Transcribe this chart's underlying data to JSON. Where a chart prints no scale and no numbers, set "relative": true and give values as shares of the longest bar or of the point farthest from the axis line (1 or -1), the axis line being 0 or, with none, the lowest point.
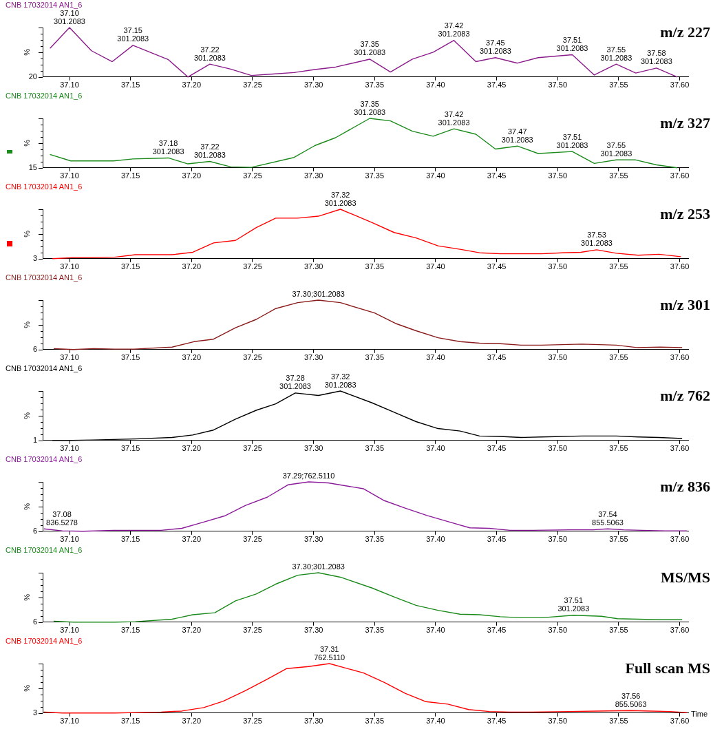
{
  "chart_data": [
    {
      "type": "line",
      "title": "CNB 17032014 AN1_6",
      "subtitle": "m/z 227",
      "ylabel": "%",
      "marker": "none",
      "line_style": "solid",
      "relative": true,
      "x": [
        37.084,
        37.1,
        37.118,
        37.135,
        37.152,
        37.181,
        37.197,
        37.215,
        37.232,
        37.249,
        37.267,
        37.284,
        37.301,
        37.318,
        37.346,
        37.363,
        37.381,
        37.398,
        37.415,
        37.433,
        37.449,
        37.467,
        37.484,
        37.512,
        37.53,
        37.548,
        37.564,
        37.581,
        37.598
      ],
      "series": [
        {
          "color": "#8b1a8b",
          "values": [
            0.58,
            1,
            0.53,
            0.31,
            0.64,
            0.35,
            0,
            0.26,
            0.16,
            0.03,
            0.06,
            0.09,
            0.15,
            0.2,
            0.36,
            0.1,
            0.36,
            0.5,
            0.74,
            0.31,
            0.39,
            0.28,
            0.39,
            0.45,
            0.04,
            0.26,
            0.08,
            0.18,
            0
          ]
        }
      ],
      "xlim": [
        37.078,
        37.607
      ],
      "xticks": [
        {
          "value": 37.1,
          "label": "37.10"
        },
        {
          "value": 37.15,
          "label": "37.15"
        },
        {
          "value": 37.2,
          "label": "37.20"
        },
        {
          "value": 37.25,
          "label": "37.25"
        },
        {
          "value": 37.3,
          "label": "37.30"
        },
        {
          "value": 37.35,
          "label": "37.35"
        },
        {
          "value": 37.4,
          "label": "37.40"
        },
        {
          "value": 37.45,
          "label": "37.45"
        },
        {
          "value": 37.5,
          "label": "37.50"
        },
        {
          "value": 37.55,
          "label": "37.55"
        },
        {
          "value": 37.6,
          "label": "37.60"
        }
      ],
      "annotations": [
        "20",
        {
          "text": "37.10\n301.2083",
          "x": 37.1,
          "y": 1
        },
        {
          "text": "37.15\n301.2083",
          "x": 37.152,
          "y": 0.64
        },
        {
          "text": "37.22\n301.2083",
          "x": 37.215,
          "y": 0.26
        },
        {
          "text": "37.35\n301.2083",
          "x": 37.346,
          "y": 0.36
        },
        {
          "text": "37.42\n301.2083",
          "x": 37.415,
          "y": 0.74
        },
        {
          "text": "37.45\n301.2083",
          "x": 37.449,
          "y": 0.39
        },
        {
          "text": "37.51\n301.2083",
          "x": 37.512,
          "y": 0.45
        },
        {
          "text": "37.55\n301.2083",
          "x": 37.548,
          "y": 0.26
        },
        {
          "text": "37.58\n301.2083",
          "x": 37.581,
          "y": 0.18
        }
      ]
    },
    {
      "type": "line",
      "title": "CNB 17032014 AN1_6",
      "subtitle": "m/z 327",
      "ylabel": "%",
      "marker": "none",
      "line_style": "solid",
      "relative": true,
      "x": [
        37.084,
        37.101,
        37.118,
        37.136,
        37.152,
        37.181,
        37.197,
        37.215,
        37.232,
        37.249,
        37.284,
        37.301,
        37.318,
        37.346,
        37.363,
        37.381,
        37.398,
        37.415,
        37.433,
        37.449,
        37.467,
        37.484,
        37.512,
        37.53,
        37.548,
        37.564,
        37.581,
        37.598
      ],
      "series": [
        {
          "color": "#1a8a1a",
          "values": [
            0.27,
            0.14,
            0.14,
            0.14,
            0.18,
            0.2,
            0.08,
            0.13,
            0.02,
            0.01,
            0.21,
            0.45,
            0.61,
            1,
            0.95,
            0.74,
            0.64,
            0.79,
            0.68,
            0.38,
            0.44,
            0.29,
            0.33,
            0.09,
            0.16,
            0.16,
            0.06,
            0
          ]
        }
      ],
      "xlim": [
        37.078,
        37.607
      ],
      "xticks": [
        {
          "value": 37.1,
          "label": "37.10"
        },
        {
          "value": 37.15,
          "label": "37.15"
        },
        {
          "value": 37.2,
          "label": "37.20"
        },
        {
          "value": 37.25,
          "label": "37.25"
        },
        {
          "value": 37.3,
          "label": "37.30"
        },
        {
          "value": 37.35,
          "label": "37.35"
        },
        {
          "value": 37.4,
          "label": "37.40"
        },
        {
          "value": 37.45,
          "label": "37.45"
        },
        {
          "value": 37.5,
          "label": "37.50"
        },
        {
          "value": 37.55,
          "label": "37.55"
        },
        {
          "value": 37.6,
          "label": "37.60"
        }
      ],
      "annotations": [
        "15",
        {
          "text": "37.18\n301.2083",
          "x": 37.181,
          "y": 0.2
        },
        {
          "text": "37.22\n301.2083",
          "x": 37.215,
          "y": 0.13
        },
        {
          "text": "37.35\n301.2083",
          "x": 37.346,
          "y": 1
        },
        {
          "text": "37.42\n301.2083",
          "x": 37.415,
          "y": 0.79
        },
        {
          "text": "37.47\n301.2083",
          "x": 37.467,
          "y": 0.44
        },
        {
          "text": "37.51\n301.2083",
          "x": 37.512,
          "y": 0.33
        },
        {
          "text": "37.55\n301.2083",
          "x": 37.548,
          "y": 0.16
        }
      ]
    },
    {
      "type": "line",
      "title": "CNB 17032014 AN1_6",
      "subtitle": "m/z 253",
      "ylabel": "%",
      "marker": "none",
      "line_style": "solid",
      "relative": true,
      "x": [
        37.086,
        37.102,
        37.119,
        37.137,
        37.154,
        37.184,
        37.201,
        37.218,
        37.236,
        37.253,
        37.269,
        37.287,
        37.304,
        37.322,
        37.348,
        37.366,
        37.384,
        37.402,
        37.42,
        37.436,
        37.453,
        37.487,
        37.504,
        37.519,
        37.532,
        37.548,
        37.566,
        37.583,
        37.601
      ],
      "series": [
        {
          "color": "#ff0000",
          "values": [
            0,
            0.02,
            0.02,
            0.03,
            0.08,
            0.08,
            0.13,
            0.32,
            0.37,
            0.63,
            0.82,
            0.82,
            0.86,
            1,
            0.73,
            0.53,
            0.42,
            0.26,
            0.19,
            0.12,
            0.1,
            0.1,
            0.12,
            0.13,
            0.18,
            0.11,
            0.07,
            0.09,
            0.04
          ]
        }
      ],
      "xlim": [
        37.078,
        37.607
      ],
      "xticks": [
        {
          "value": 37.1,
          "label": "37.10"
        },
        {
          "value": 37.15,
          "label": "37.15"
        },
        {
          "value": 37.2,
          "label": "37.20"
        },
        {
          "value": 37.25,
          "label": "37.25"
        },
        {
          "value": 37.3,
          "label": "37.30"
        },
        {
          "value": 37.35,
          "label": "37.35"
        },
        {
          "value": 37.4,
          "label": "37.40"
        },
        {
          "value": 37.45,
          "label": "37.45"
        },
        {
          "value": 37.5,
          "label": "37.50"
        },
        {
          "value": 37.55,
          "label": "37.55"
        },
        {
          "value": 37.6,
          "label": "37.60"
        }
      ],
      "annotations": [
        "3",
        {
          "text": "37.32\n301.2083",
          "x": 37.322,
          "y": 1
        },
        {
          "text": "37.53\n301.2083",
          "x": 37.532,
          "y": 0.18
        }
      ]
    },
    {
      "type": "line",
      "title": "CNB 17032014 AN1_6",
      "subtitle": "m/z 301",
      "ylabel": "%",
      "marker": "none",
      "line_style": "solid",
      "relative": true,
      "x": [
        37.087,
        37.103,
        37.12,
        37.137,
        37.153,
        37.184,
        37.202,
        37.218,
        37.236,
        37.253,
        37.269,
        37.287,
        37.304,
        37.322,
        37.35,
        37.367,
        37.384,
        37.402,
        37.42,
        37.436,
        37.453,
        37.47,
        37.487,
        37.52,
        37.548,
        37.565,
        37.584,
        37.602
      ],
      "series": [
        {
          "color": "#8b1a1a",
          "values": [
            0.02,
            0,
            0.02,
            0.01,
            0.01,
            0.05,
            0.16,
            0.21,
            0.44,
            0.61,
            0.83,
            0.95,
            1,
            0.95,
            0.74,
            0.53,
            0.38,
            0.24,
            0.16,
            0.13,
            0.12,
            0.09,
            0.09,
            0.11,
            0.09,
            0.04,
            0.05,
            0.04
          ]
        }
      ],
      "xlim": [
        37.078,
        37.607
      ],
      "xticks": [
        {
          "value": 37.1,
          "label": "37.10"
        },
        {
          "value": 37.15,
          "label": "37.15"
        },
        {
          "value": 37.2,
          "label": "37.20"
        },
        {
          "value": 37.25,
          "label": "37.25"
        },
        {
          "value": 37.3,
          "label": "37.30"
        },
        {
          "value": 37.35,
          "label": "37.35"
        },
        {
          "value": 37.4,
          "label": "37.40"
        },
        {
          "value": 37.45,
          "label": "37.45"
        },
        {
          "value": 37.5,
          "label": "37.50"
        },
        {
          "value": 37.55,
          "label": "37.55"
        },
        {
          "value": 37.6,
          "label": "37.60"
        }
      ],
      "annotations": [
        "6",
        {
          "text": "37.30;301.2083",
          "x": 37.304,
          "y": 1
        }
      ]
    },
    {
      "type": "line",
      "title": "CNB 17032014 AN1_6",
      "subtitle": "m/z 762",
      "ylabel": "%",
      "marker": "none",
      "line_style": "solid",
      "relative": true,
      "x": [
        37.086,
        37.102,
        37.119,
        37.136,
        37.154,
        37.184,
        37.201,
        37.218,
        37.236,
        37.253,
        37.269,
        37.285,
        37.304,
        37.322,
        37.348,
        37.367,
        37.384,
        37.402,
        37.42,
        37.436,
        37.453,
        37.47,
        37.487,
        37.52,
        37.535,
        37.548,
        37.566,
        37.583,
        37.602
      ],
      "series": [
        {
          "color": "#000000",
          "values": [
            0,
            0,
            0.01,
            0.02,
            0.03,
            0.06,
            0.11,
            0.21,
            0.43,
            0.61,
            0.74,
            0.96,
            0.91,
            1,
            0.76,
            0.56,
            0.38,
            0.24,
            0.19,
            0.09,
            0.08,
            0.06,
            0.07,
            0.09,
            0.09,
            0.09,
            0.07,
            0.06,
            0.04
          ]
        }
      ],
      "xlim": [
        37.078,
        37.607
      ],
      "xticks": [
        {
          "value": 37.1,
          "label": "37.10"
        },
        {
          "value": 37.15,
          "label": "37.15"
        },
        {
          "value": 37.2,
          "label": "37.20"
        },
        {
          "value": 37.25,
          "label": "37.25"
        },
        {
          "value": 37.3,
          "label": "37.30"
        },
        {
          "value": 37.35,
          "label": "37.35"
        },
        {
          "value": 37.4,
          "label": "37.40"
        },
        {
          "value": 37.45,
          "label": "37.45"
        },
        {
          "value": 37.5,
          "label": "37.50"
        },
        {
          "value": 37.55,
          "label": "37.55"
        },
        {
          "value": 37.6,
          "label": "37.60"
        }
      ],
      "annotations": [
        "1",
        {
          "text": "37.28\n301.2083",
          "x": 37.285,
          "y": 0.96
        },
        {
          "text": "37.32\n301.2083",
          "x": 37.322,
          "y": 1
        }
      ]
    },
    {
      "type": "line",
      "title": "CNB 17032014 AN1_6",
      "subtitle": "m/z 836",
      "ylabel": "%",
      "marker": "none",
      "line_style": "solid",
      "relative": true,
      "x": [
        37.079,
        37.094,
        37.111,
        37.136,
        37.154,
        37.175,
        37.192,
        37.209,
        37.227,
        37.244,
        37.262,
        37.279,
        37.296,
        37.312,
        37.341,
        37.358,
        37.375,
        37.393,
        37.411,
        37.428,
        37.444,
        37.461,
        37.48,
        37.51,
        37.529,
        37.541,
        37.554,
        37.569,
        37.588,
        37.606
      ],
      "series": [
        {
          "color": "#8b1a9b",
          "values": [
            0.05,
            0.01,
            0,
            0.02,
            0.02,
            0.02,
            0.06,
            0.18,
            0.31,
            0.52,
            0.69,
            0.94,
            1,
            0.98,
            0.86,
            0.62,
            0.47,
            0.32,
            0.19,
            0.07,
            0.06,
            0.02,
            0.02,
            0.03,
            0.03,
            0.05,
            0.03,
            0.02,
            0.01,
            0.01
          ]
        }
      ],
      "xlim": [
        37.078,
        37.607
      ],
      "xticks": [
        {
          "value": 37.1,
          "label": "37.10"
        },
        {
          "value": 37.15,
          "label": "37.15"
        },
        {
          "value": 37.2,
          "label": "37.20"
        },
        {
          "value": 37.25,
          "label": "37.25"
        },
        {
          "value": 37.3,
          "label": "37.30"
        },
        {
          "value": 37.35,
          "label": "37.35"
        },
        {
          "value": 37.4,
          "label": "37.40"
        },
        {
          "value": 37.45,
          "label": "37.45"
        },
        {
          "value": 37.5,
          "label": "37.50"
        },
        {
          "value": 37.55,
          "label": "37.55"
        },
        {
          "value": 37.6,
          "label": "37.60"
        }
      ],
      "annotations": [
        "6",
        {
          "text": "37.29;762.5110",
          "x": 37.296,
          "y": 1
        },
        {
          "text": "37.08\n836.5278",
          "x": 37.079,
          "y": 0.05
        },
        {
          "text": "37.54\n855.5063",
          "x": 37.541,
          "y": 0.05
        }
      ]
    },
    {
      "type": "line",
      "title": "CNB 17032014 AN1_6",
      "subtitle": "MS/MS",
      "ylabel": "%",
      "marker": "none",
      "line_style": "solid",
      "relative": true,
      "x": [
        37.087,
        37.103,
        37.12,
        37.137,
        37.154,
        37.184,
        37.201,
        37.219,
        37.236,
        37.253,
        37.269,
        37.287,
        37.304,
        37.322,
        37.348,
        37.367,
        37.384,
        37.402,
        37.42,
        37.436,
        37.453,
        37.47,
        37.487,
        37.513,
        37.536,
        37.549,
        37.566,
        37.583,
        37.602
      ],
      "series": [
        {
          "color": "#1a8a1a",
          "values": [
            0.02,
            0,
            0,
            0,
            0.01,
            0.06,
            0.15,
            0.19,
            0.43,
            0.57,
            0.77,
            0.95,
            1,
            0.91,
            0.69,
            0.5,
            0.34,
            0.24,
            0.16,
            0.15,
            0.11,
            0.09,
            0.09,
            0.14,
            0.12,
            0.07,
            0.06,
            0.05,
            0.05
          ]
        }
      ],
      "xlim": [
        37.078,
        37.607
      ],
      "xticks": [
        {
          "value": 37.1,
          "label": "37.10"
        },
        {
          "value": 37.15,
          "label": "37.15"
        },
        {
          "value": 37.2,
          "label": "37.20"
        },
        {
          "value": 37.25,
          "label": "37.25"
        },
        {
          "value": 37.3,
          "label": "37.30"
        },
        {
          "value": 37.35,
          "label": "37.35"
        },
        {
          "value": 37.4,
          "label": "37.40"
        },
        {
          "value": 37.45,
          "label": "37.45"
        },
        {
          "value": 37.5,
          "label": "37.50"
        },
        {
          "value": 37.55,
          "label": "37.55"
        },
        {
          "value": 37.6,
          "label": "37.60"
        }
      ],
      "annotations": [
        "6",
        {
          "text": "37.30;301.2083",
          "x": 37.304,
          "y": 1
        },
        {
          "text": "37.51\n301.2083",
          "x": 37.513,
          "y": 0.14
        }
      ]
    },
    {
      "type": "line",
      "title": "CNB 17032014 AN1_6",
      "subtitle": "Full scan MS",
      "ylabel": "%",
      "xlabel": "Time",
      "marker": "none",
      "line_style": "solid",
      "relative": true,
      "x": [
        37.079,
        37.094,
        37.111,
        37.137,
        37.154,
        37.175,
        37.192,
        37.21,
        37.226,
        37.244,
        37.261,
        37.278,
        37.296,
        37.313,
        37.341,
        37.358,
        37.375,
        37.392,
        37.41,
        37.427,
        37.444,
        37.461,
        37.479,
        37.509,
        37.532,
        37.56,
        37.577,
        37.592,
        37.606
      ],
      "series": [
        {
          "color": "#ff0000",
          "values": [
            0.02,
            0,
            0,
            0,
            0.01,
            0.02,
            0.04,
            0.11,
            0.24,
            0.45,
            0.67,
            0.9,
            0.94,
            1,
            0.81,
            0.62,
            0.4,
            0.23,
            0.18,
            0.07,
            0.03,
            0.02,
            0.02,
            0.03,
            0.04,
            0.05,
            0.04,
            0.03,
            0.01
          ]
        }
      ],
      "xlim": [
        37.078,
        37.607
      ],
      "xticks": [
        {
          "value": 37.1,
          "label": "37.10"
        },
        {
          "value": 37.15,
          "label": "37.15"
        },
        {
          "value": 37.2,
          "label": "37.20"
        },
        {
          "value": 37.25,
          "label": "37.25"
        },
        {
          "value": 37.3,
          "label": "37.30"
        },
        {
          "value": 37.35,
          "label": "37.35"
        },
        {
          "value": 37.4,
          "label": "37.40"
        },
        {
          "value": 37.45,
          "label": "37.45"
        },
        {
          "value": 37.5,
          "label": "37.50"
        },
        {
          "value": 37.55,
          "label": "37.55"
        },
        {
          "value": 37.6,
          "label": "37.60"
        }
      ],
      "annotations": [
        "3",
        {
          "text": "37.31\n762.5110",
          "x": 37.313,
          "y": 1
        },
        {
          "text": "37.56\n855.5063",
          "x": 37.56,
          "y": 0.05
        }
      ]
    }
  ]
}
